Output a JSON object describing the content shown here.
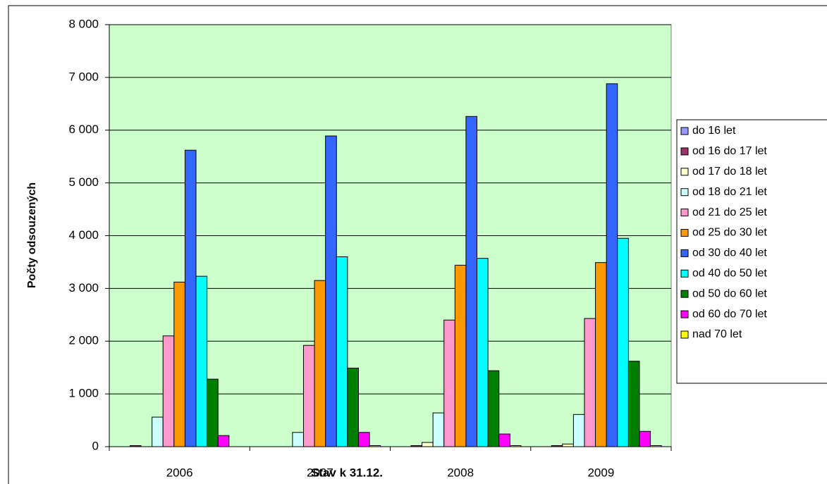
{
  "chart_data": {
    "type": "bar",
    "xlabel": "Stav k 31.12.",
    "ylabel": "Počty odsouzených",
    "categories": [
      "2006",
      "2007",
      "2008",
      "2009"
    ],
    "ylim": [
      0,
      8000
    ],
    "yticks": [
      0,
      {
        "value": 1000,
        "label": "1 000"
      },
      {
        "value": 2000,
        "label": "2 000"
      },
      {
        "value": 3000,
        "label": "3 000"
      },
      {
        "value": 4000,
        "label": "4 000"
      },
      {
        "value": 5000,
        "label": "5 000"
      },
      {
        "value": 6000,
        "label": "6 000"
      },
      {
        "value": 7000,
        "label": "7 000"
      },
      {
        "value": 8000,
        "label": "8 000"
      }
    ],
    "grid": true,
    "legend": "right",
    "series": [
      {
        "name": "do 16 let",
        "color": "#9999ff",
        "values": [
          0,
          0,
          0,
          0
        ]
      },
      {
        "name": "od 16 do 17 let",
        "color": "#993366",
        "values": [
          20,
          0,
          20,
          20
        ]
      },
      {
        "name": "od 17 do 18 let",
        "color": "#ffffcc",
        "values": [
          0,
          0,
          80,
          50
        ]
      },
      {
        "name": "od 18 do 21 let",
        "color": "#ccffff",
        "values": [
          560,
          270,
          640,
          610
        ]
      },
      {
        "name": "od 21 do 25 let",
        "color": "#ff99cc",
        "values": [
          2100,
          1920,
          2400,
          2430
        ]
      },
      {
        "name": "od 25 do 30 let",
        "color": "#ff9900",
        "values": [
          3120,
          3150,
          3440,
          3490
        ]
      },
      {
        "name": "od 30 do 40 let",
        "color": "#3366ff",
        "values": [
          5620,
          5890,
          6260,
          6880
        ]
      },
      {
        "name": "od 40 do 50 let",
        "color": "#00ffff",
        "values": [
          3230,
          3600,
          3570,
          3950
        ]
      },
      {
        "name": "od 50 do 60 let",
        "color": "#008000",
        "values": [
          1280,
          1490,
          1440,
          1620
        ]
      },
      {
        "name": "od 60 do 70 let",
        "color": "#ff00ff",
        "values": [
          210,
          270,
          240,
          290
        ]
      },
      {
        "name": "nad 70 let",
        "color": "#ffff00",
        "values": [
          0,
          20,
          20,
          20
        ]
      }
    ]
  }
}
